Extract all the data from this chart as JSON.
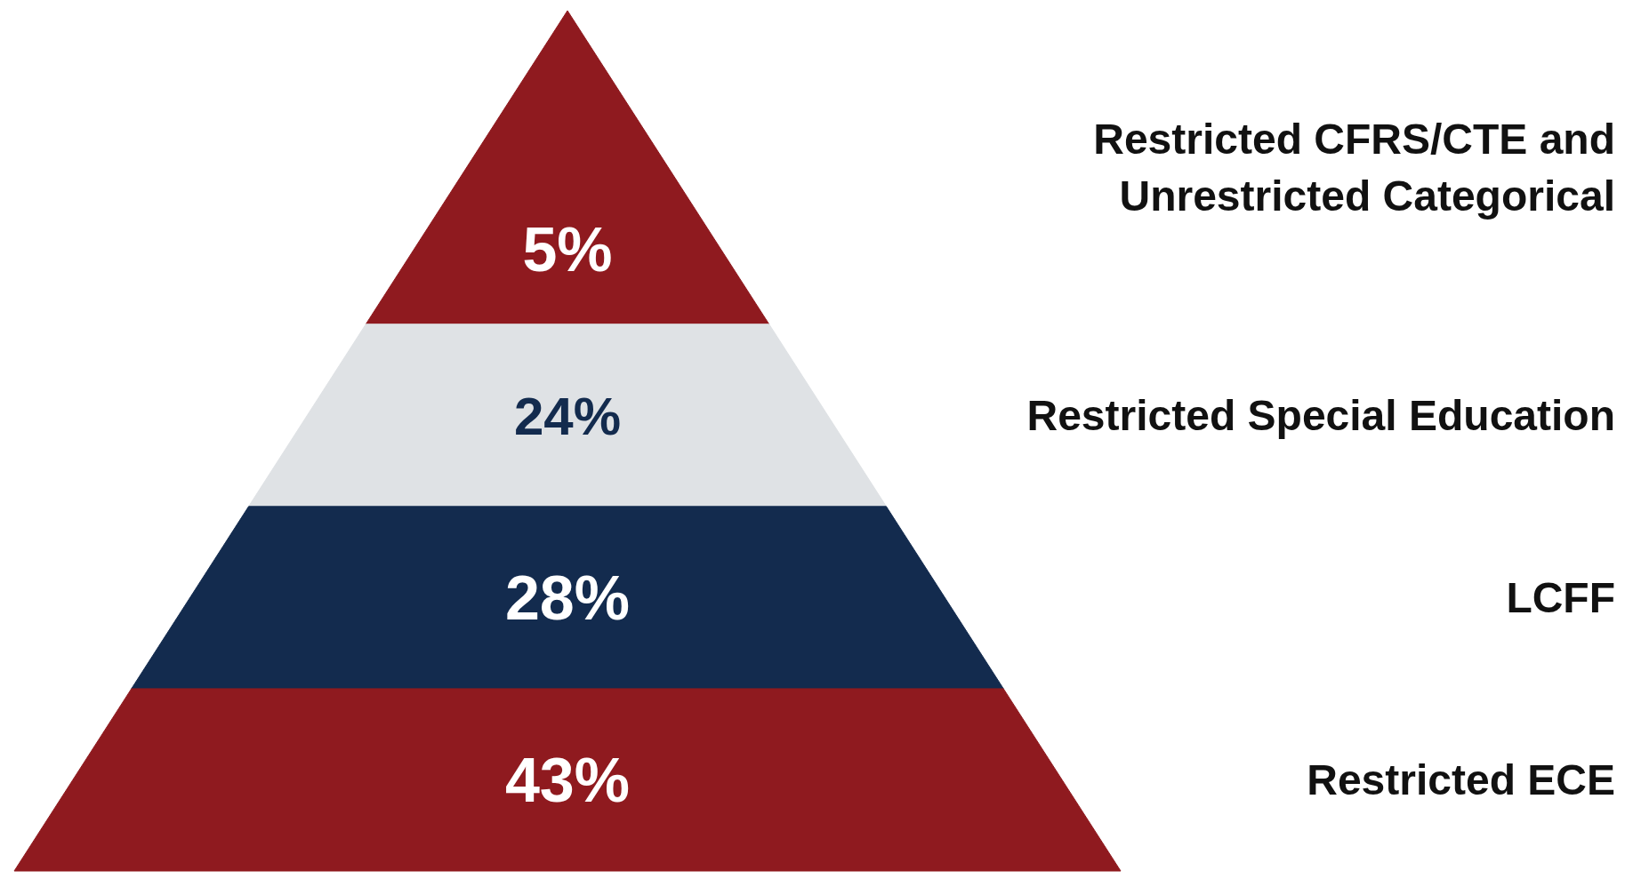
{
  "chart_data": {
    "type": "other",
    "categories": [
      "Restricted CFRS/CTE and Unrestricted Categorical",
      "Restricted Special Education",
      "LCFF",
      "Restricted ECE"
    ],
    "values": [
      5,
      24,
      28,
      43
    ],
    "colors": [
      "#8f1a1f",
      "#dfe2e5",
      "#132b4e",
      "#8f1a1f"
    ],
    "value_labels": [
      "5%",
      "24%",
      "28%",
      "43%"
    ]
  }
}
